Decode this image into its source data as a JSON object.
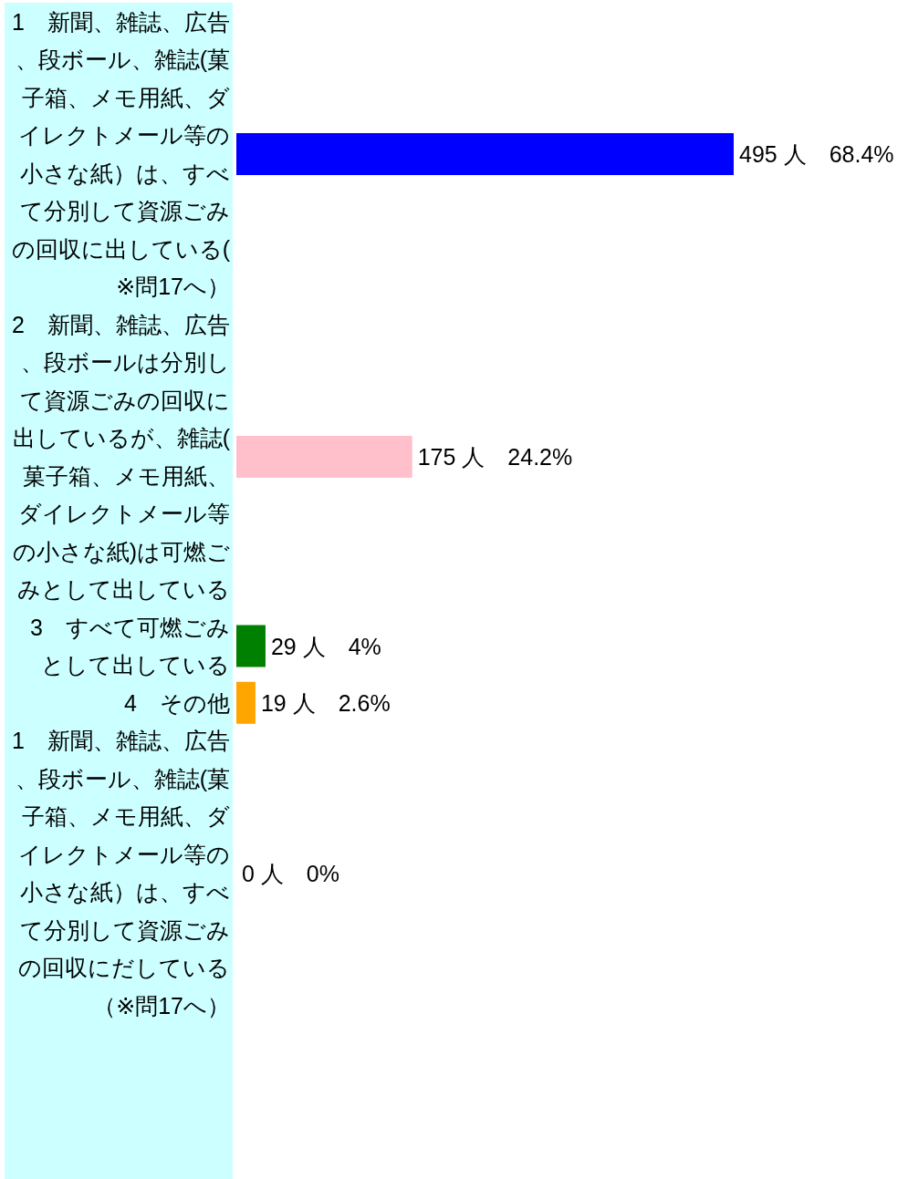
{
  "chart_data": {
    "type": "bar",
    "orientation": "horizontal",
    "categories": [
      "1　新聞、雑誌、広告、段ボール、雑誌(菓子箱、メモ用紙、ダイレクトメール等の小さな紙）は、すべて分別して資源ごみの回収に出している(※問17へ）",
      "2　新聞、雑誌、広告、段ボールは分別して資源ごみの回収に出しているが、雑誌(菓子箱、メモ用紙、ダイレクトメール等の小さな紙)は可燃ごみとして出している",
      "3　すべて可燃ごみとして出している",
      "4　その他",
      "1　新聞、雑誌、広告、段ボール、雑誌(菓子箱、メモ用紙、ダイレクトメール等の小さな紙）は、すべて分別して資源ごみの回収にだしている（※問17へ）"
    ],
    "values": [
      495,
      175,
      29,
      19,
      0
    ],
    "colors": [
      "#0000ff",
      "#ffc0cb",
      "#008000",
      "#ffa500",
      "#808080"
    ],
    "value_labels": [
      "495 人　68.4%",
      "175 人　24.2%",
      "29 人　4%",
      "19 人　2.6%",
      "0 人　0%"
    ]
  }
}
